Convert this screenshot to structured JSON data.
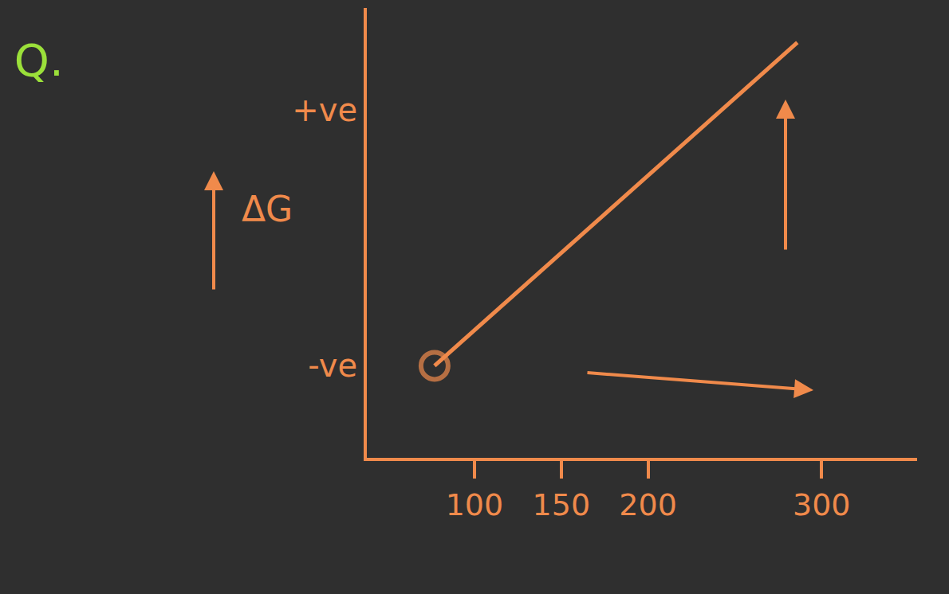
{
  "chart_data": {
    "type": "line",
    "title": "Q.",
    "y_label": "ΔG",
    "x": [
      77,
      286
    ],
    "values": [
      -1,
      1.53
    ],
    "color": "#f08a4b",
    "marker": "circle",
    "xlim": [
      38,
      355
    ],
    "xticks": [
      100,
      150,
      200,
      300
    ],
    "ylim": [
      -1.72,
      1.8
    ],
    "yticks": [
      {
        "value": -1,
        "label": "-ve"
      },
      {
        "value": 1,
        "label": "+ve"
      }
    ],
    "grid": false
  }
}
